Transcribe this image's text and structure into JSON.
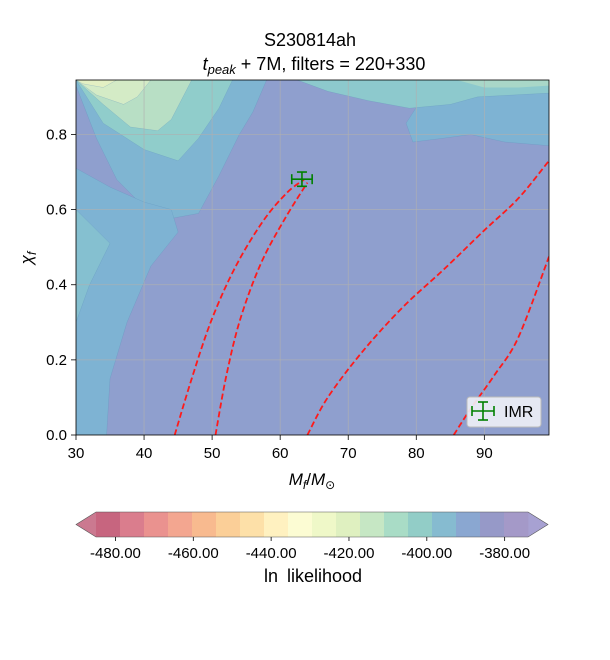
{
  "chart_data": {
    "type": "heatmap",
    "title": "S230814ah",
    "subtitle": {
      "t": "t",
      "sub": "peak",
      "rest": " + 7M, filters = 220+330"
    },
    "xlabel": {
      "m": "M",
      "sub": "f",
      "slash": "/",
      "m2": "M",
      "sub2": "⊙"
    },
    "ylabel": {
      "chi": "χ",
      "sub": "f"
    },
    "xlim": [
      30,
      99.5
    ],
    "ylim": [
      0,
      0.945
    ],
    "xticks": [
      "30",
      "40",
      "50",
      "60",
      "70",
      "80",
      "90"
    ],
    "yticks": [
      "0.0",
      "0.2",
      "0.4",
      "0.6",
      "0.8"
    ],
    "grid": true,
    "imr_point": {
      "label": "IMR",
      "x": 63.2,
      "y": 0.681,
      "xerr": 1.5,
      "yerr": 0.019,
      "color": "#008000"
    },
    "legend_position": "lower-right",
    "red_contours": [
      {
        "points": [
          [
            44.5,
            0.0
          ],
          [
            47.0,
            0.15
          ],
          [
            50.0,
            0.31
          ],
          [
            53.5,
            0.45
          ],
          [
            57.5,
            0.57
          ],
          [
            61.0,
            0.645
          ],
          [
            63.5,
            0.68
          ]
        ]
      },
      {
        "points": [
          [
            50.5,
            0.0
          ],
          [
            52.0,
            0.15
          ],
          [
            54.0,
            0.3
          ],
          [
            57.0,
            0.45
          ],
          [
            60.5,
            0.57
          ],
          [
            64.0,
            0.672
          ]
        ]
      },
      {
        "points": [
          [
            64.0,
            0.0
          ],
          [
            67.0,
            0.1
          ],
          [
            72.0,
            0.22
          ],
          [
            78.0,
            0.34
          ],
          [
            84.0,
            0.44
          ],
          [
            90.0,
            0.545
          ],
          [
            95.0,
            0.63
          ],
          [
            99.5,
            0.73
          ]
        ]
      },
      {
        "points": [
          [
            85.5,
            0.0
          ],
          [
            88.0,
            0.07
          ],
          [
            91.5,
            0.16
          ],
          [
            95.0,
            0.26
          ],
          [
            99.5,
            0.475
          ]
        ]
      }
    ],
    "contour_fill": {
      "baseline_color": "#8f9fce",
      "upper_bands": [
        {
          "points": [
            [
              30,
              0.93
            ],
            [
              33,
              0.79
            ],
            [
              36,
              0.68
            ],
            [
              42,
              0.57
            ],
            [
              48,
              0.59
            ],
            [
              51,
              0.69
            ],
            [
              54,
              0.8
            ],
            [
              56,
              0.86
            ],
            [
              58,
              0.945
            ],
            [
              30,
              0.945
            ]
          ],
          "color": "#7fb5d2"
        },
        {
          "points": [
            [
              30,
              0.945
            ],
            [
              34,
              0.83
            ],
            [
              40,
              0.76
            ],
            [
              45,
              0.73
            ],
            [
              48,
              0.79
            ],
            [
              51,
              0.87
            ],
            [
              53,
              0.945
            ]
          ],
          "color": "#90cdcb"
        },
        {
          "points": [
            [
              30,
              0.945
            ],
            [
              34,
              0.88
            ],
            [
              38,
              0.82
            ],
            [
              42,
              0.81
            ],
            [
              44,
              0.84
            ],
            [
              47,
              0.945
            ]
          ],
          "color": "#b8dfc5"
        },
        {
          "points": [
            [
              30,
              0.945
            ],
            [
              33,
              0.905
            ],
            [
              37,
              0.88
            ],
            [
              39,
              0.9
            ],
            [
              41,
              0.945
            ]
          ],
          "color": "#d4ebc6"
        },
        {
          "points": [
            [
              30,
              0.945
            ],
            [
              31,
              0.935
            ],
            [
              34,
              0.925
            ],
            [
              36,
              0.945
            ]
          ],
          "color": "#e3f0c3"
        }
      ],
      "left_bands": [
        {
          "points": [
            [
              30,
              0.0
            ],
            [
              34.5,
              0.0
            ],
            [
              35,
              0.15
            ],
            [
              37.5,
              0.3
            ],
            [
              41,
              0.45
            ],
            [
              45,
              0.54
            ],
            [
              44,
              0.6
            ],
            [
              40,
              0.62
            ],
            [
              35,
              0.66
            ],
            [
              30,
              0.71
            ]
          ],
          "color": "#7eb3d3"
        },
        {
          "points": [
            [
              30,
              0.3
            ],
            [
              32,
              0.4
            ],
            [
              35,
              0.51
            ],
            [
              30,
              0.6
            ]
          ],
          "color": "#85c0d0"
        }
      ],
      "right_top_region": {
        "points": [
          [
            99.5,
            0.945
          ],
          [
            87,
            0.945
          ],
          [
            81,
            0.9
          ],
          [
            78.5,
            0.83
          ],
          [
            79.5,
            0.78
          ],
          [
            84,
            0.79
          ],
          [
            88,
            0.8
          ],
          [
            93,
            0.78
          ],
          [
            99.5,
            0.77
          ]
        ],
        "color": "#7eb3d3"
      },
      "top_blob": {
        "points": [
          [
            62.5,
            0.945
          ],
          [
            67,
            0.915
          ],
          [
            73,
            0.89
          ],
          [
            79,
            0.87
          ],
          [
            85,
            0.88
          ],
          [
            89,
            0.9
          ],
          [
            99.5,
            0.91
          ],
          [
            99.5,
            0.945
          ]
        ],
        "color": "#8dc9cd"
      },
      "top_blob_inner": {
        "points": [
          [
            86,
            0.945
          ],
          [
            90,
            0.925
          ],
          [
            95,
            0.925
          ],
          [
            99.5,
            0.93
          ],
          [
            99.5,
            0.945
          ]
        ],
        "color": "#a9d7c8"
      }
    },
    "colorbar": {
      "label": "ln likelihood",
      "ticks": [
        "-480.00",
        "-460.00",
        "-440.00",
        "-420.00",
        "-400.00",
        "-380.00"
      ],
      "tick_values": [
        -480,
        -460,
        -440,
        -420,
        -400,
        -380
      ],
      "range": [
        -485,
        -374
      ],
      "colors": [
        "#c7657f",
        "#da7d8d",
        "#ea928f",
        "#f3a690",
        "#f8ba8f",
        "#fbcf98",
        "#fde0a8",
        "#fff1c0",
        "#fcfcd3",
        "#eff8c8",
        "#dff0c0",
        "#c6e7c4",
        "#a9dcc6",
        "#92cdc7",
        "#86bbd0",
        "#8aa7d1",
        "#9699c8",
        "#a499c8"
      ],
      "under_color": "#c2617d",
      "over_color": "#a7a1d2"
    }
  }
}
